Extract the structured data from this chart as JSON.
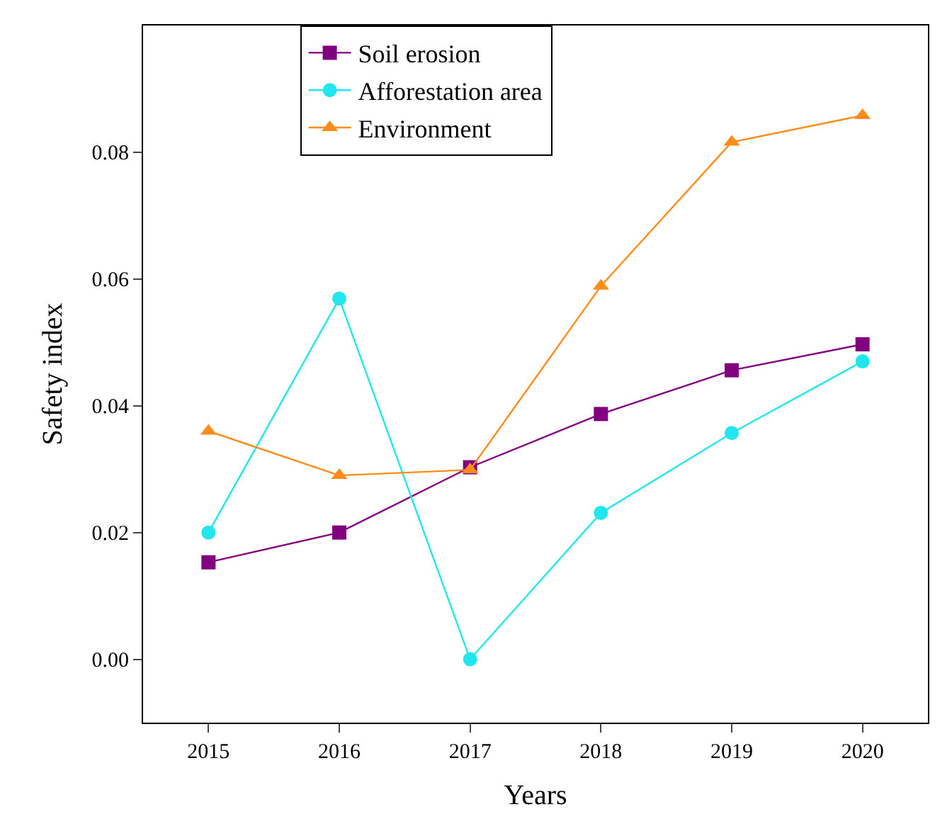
{
  "chart_data": {
    "type": "line",
    "xlabel": "Years",
    "ylabel": "Safety index",
    "x": [
      2015,
      2016,
      2017,
      2018,
      2019,
      2020
    ],
    "series": [
      {
        "name": "Soil erosion",
        "color": "#800080",
        "marker": "square",
        "values": [
          0.0153,
          0.02,
          0.0303,
          0.0387,
          0.0456,
          0.0497
        ]
      },
      {
        "name": "Afforestation area",
        "color": "#22e6ee",
        "marker": "circle",
        "values": [
          0.02,
          0.0569,
          0.0,
          0.0231,
          0.0357,
          0.047
        ]
      },
      {
        "name": "Environment",
        "color": "#ff8c1a",
        "marker": "triangle",
        "values": [
          0.036,
          0.029,
          0.0299,
          0.0589,
          0.0816,
          0.0858
        ]
      }
    ],
    "xlim": [
      2014.5,
      2020.5
    ],
    "xticks": [
      2015,
      2016,
      2017,
      2018,
      2019,
      2020
    ],
    "ylim": [
      -0.01,
      0.1
    ],
    "yticks": [
      {
        "value": 0.0,
        "label": "0.00"
      },
      {
        "value": 0.02,
        "label": "0.02"
      },
      {
        "value": 0.04,
        "label": "0.04"
      },
      {
        "value": 0.06,
        "label": "0.06"
      },
      {
        "value": 0.08,
        "label": "0.08"
      }
    ],
    "legend": "top",
    "line_style": "solid"
  }
}
